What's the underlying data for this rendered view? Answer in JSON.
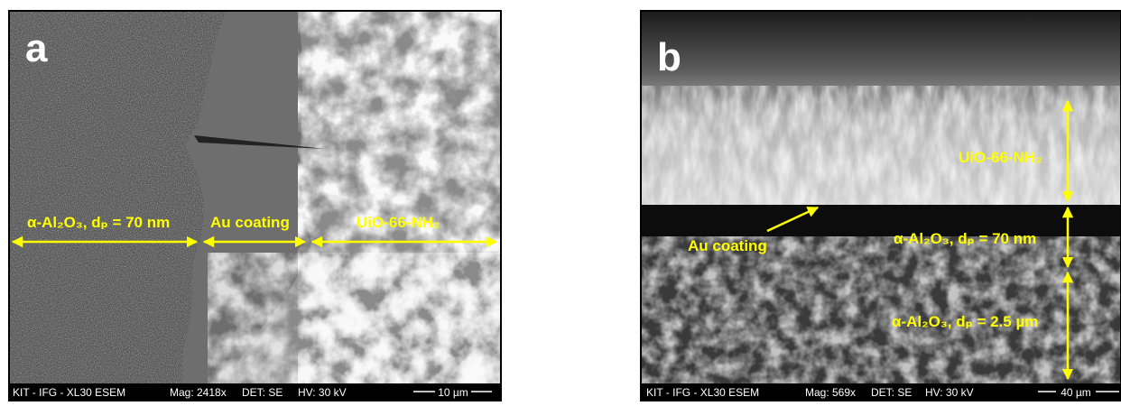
{
  "panels": [
    {
      "label": "a",
      "annotations": [
        "α-Al₂O₃, dₚ = 70 nm",
        "Au coating",
        "UiO-66-NH₂"
      ],
      "info_bar": {
        "instrument": "KIT - IFG - XL30 ESEM",
        "magnification": "Mag: 2418x",
        "detector": "DET: SE",
        "voltage": "HV: 30 kV",
        "scale_bar": "10 µm"
      }
    },
    {
      "label": "b",
      "annotations": [
        "UiO-66-NH₂",
        "Au coating",
        "α-Al₂O₃, dₚ = 70 nm",
        "α-Al₂O₃, dₚ = 2.5 µm"
      ],
      "info_bar": {
        "instrument": "KIT - IFG - XL30 ESEM",
        "magnification": "Mag: 569x",
        "detector": "DET: SE",
        "voltage": "HV: 30 kV",
        "scale_bar": "40 µm"
      }
    }
  ]
}
